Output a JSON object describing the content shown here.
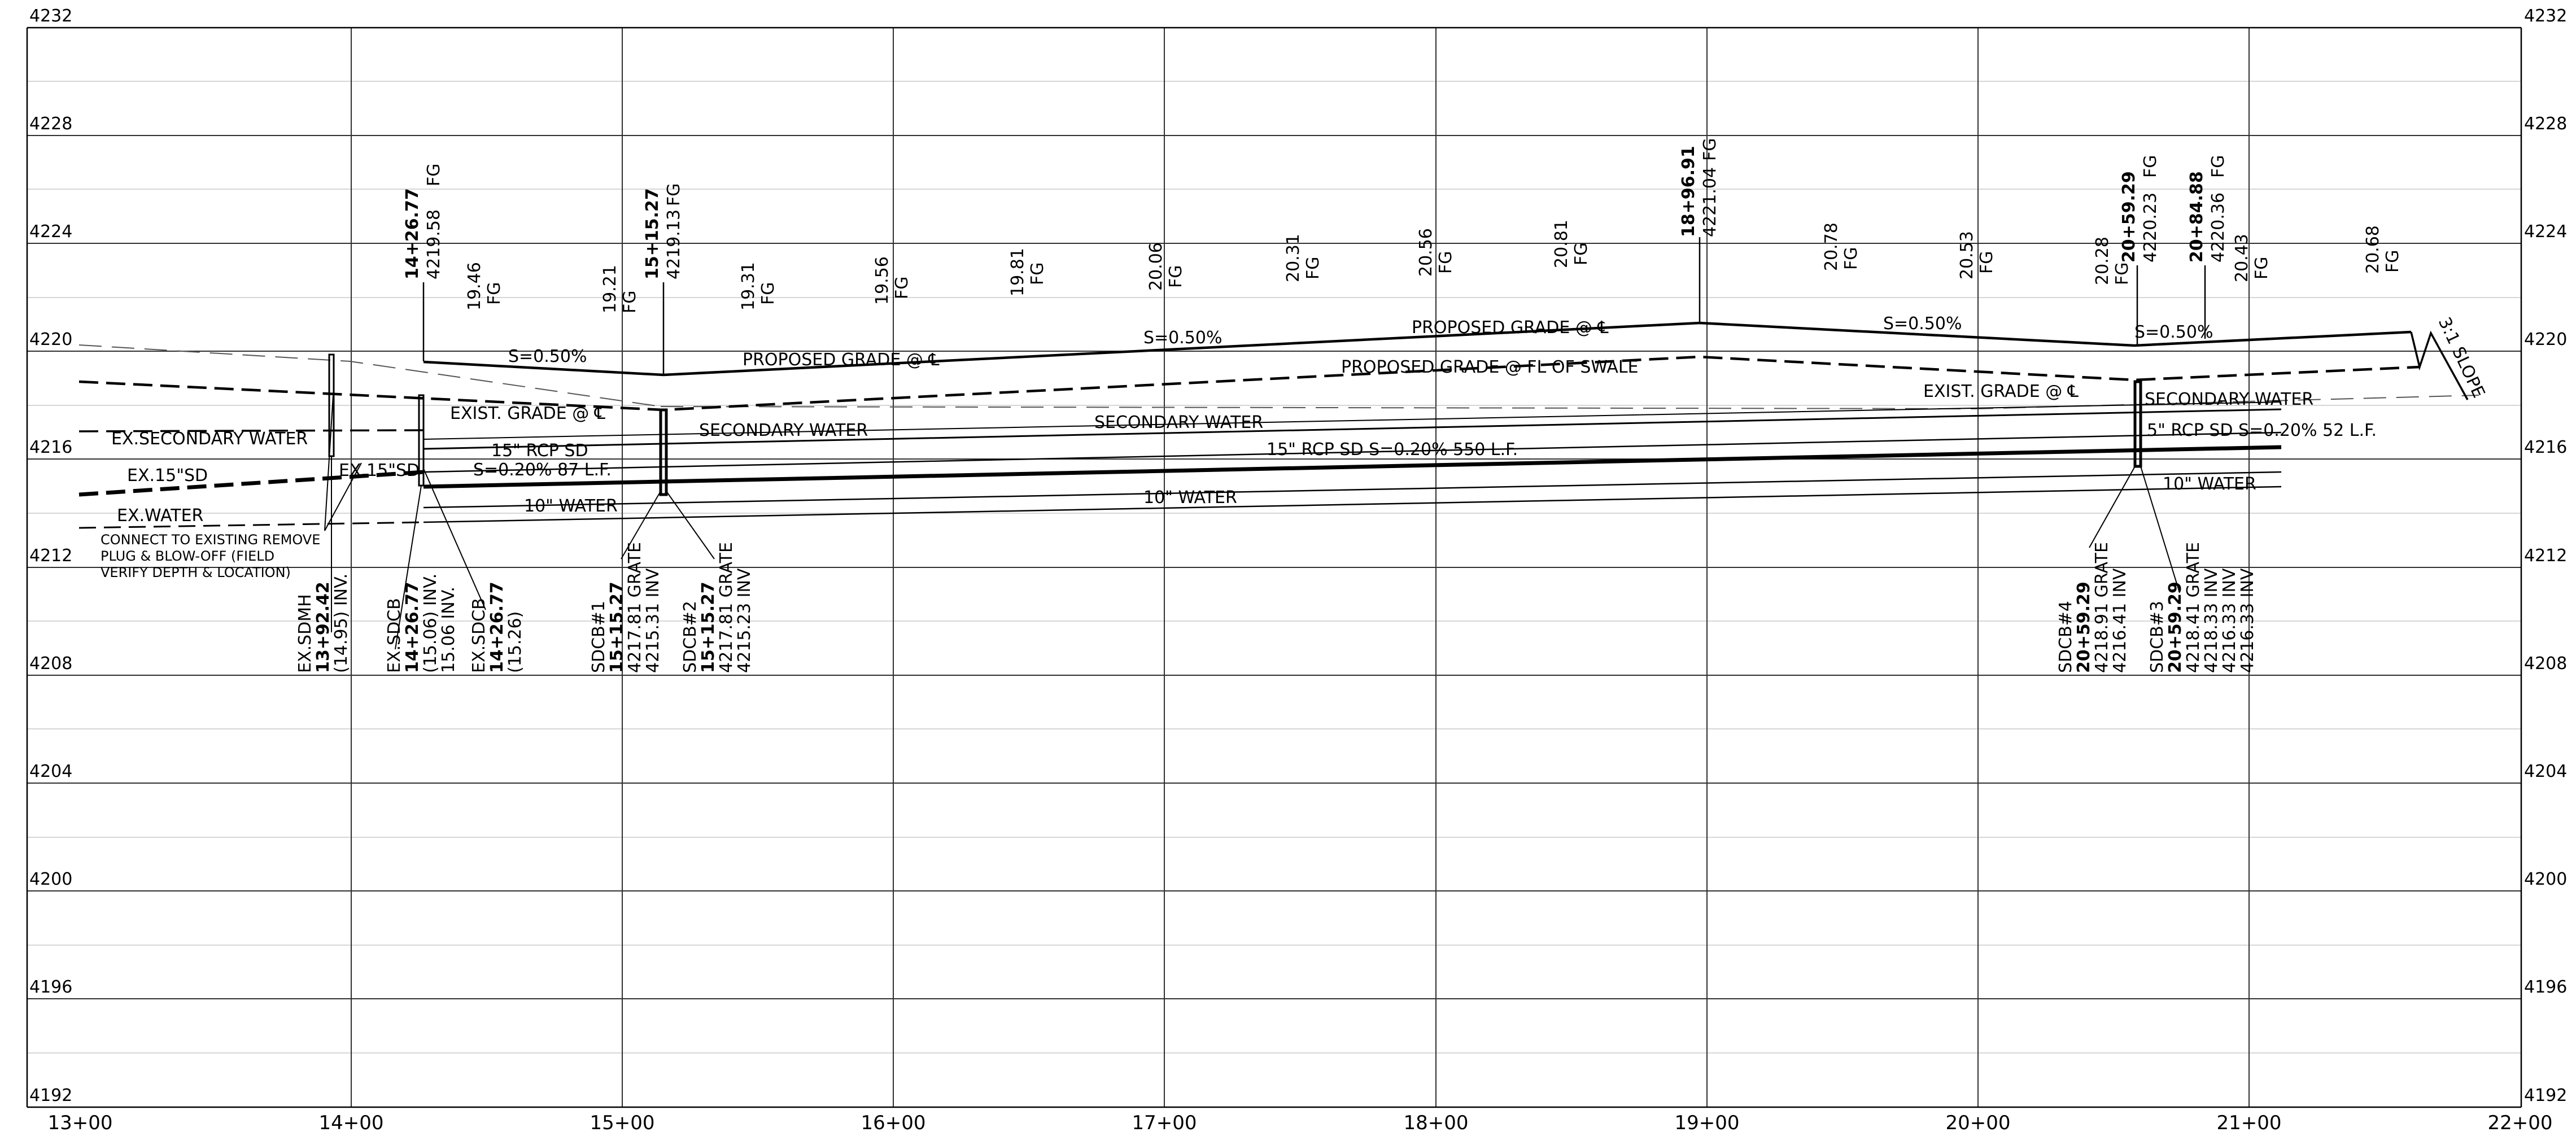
{
  "sheet": {
    "elev_min": 4192,
    "elev_max": 4232,
    "elev_labels": [
      "4232",
      "4228",
      "4224",
      "4220",
      "4216",
      "4212",
      "4208",
      "4204",
      "4200",
      "4196",
      "4192"
    ],
    "station_labels": [
      "13+00",
      "14+00",
      "15+00",
      "16+00",
      "17+00",
      "18+00",
      "19+00",
      "20+00",
      "21+00",
      "22+00"
    ]
  },
  "station_callouts": [
    {
      "id": "sta-1426",
      "station": "14+26.77",
      "elev": "4219.58",
      "suffix": "FG"
    },
    {
      "id": "sta-1515",
      "station": "15+15.27",
      "elev": "4219.13",
      "suffix": "FG"
    },
    {
      "id": "sta-1896",
      "station": "18+96.91",
      "elev": "4221.04",
      "suffix": "FG"
    },
    {
      "id": "sta-2059",
      "station": "20+59.29",
      "elev": "4220.23",
      "suffix": "FG"
    },
    {
      "id": "sta-2084",
      "station": "20+84.88",
      "elev": "4220.36",
      "suffix": "FG"
    }
  ],
  "grade_callouts": [
    {
      "id": "g1",
      "value": "19.46",
      "suffix": "FG"
    },
    {
      "id": "g2",
      "value": "19.21",
      "suffix": "FG"
    },
    {
      "id": "g3",
      "value": "19.31",
      "suffix": "FG"
    },
    {
      "id": "g4",
      "value": "19.56",
      "suffix": "FG"
    },
    {
      "id": "g5",
      "value": "19.81",
      "suffix": "FG"
    },
    {
      "id": "g6",
      "value": "20.06",
      "suffix": "FG"
    },
    {
      "id": "g7",
      "value": "20.31",
      "suffix": "FG"
    },
    {
      "id": "g8",
      "value": "20.56",
      "suffix": "FG"
    },
    {
      "id": "g9",
      "value": "20.81",
      "suffix": "FG"
    },
    {
      "id": "g10",
      "value": "20.78",
      "suffix": "FG"
    },
    {
      "id": "g11",
      "value": "20.53",
      "suffix": "FG"
    },
    {
      "id": "g12",
      "value": "20.28",
      "suffix": "FG"
    },
    {
      "id": "g13",
      "value": "20.43",
      "suffix": "FG"
    },
    {
      "id": "g14",
      "value": "20.68",
      "suffix": "FG"
    }
  ],
  "labels": {
    "slope_1": "S=0.50%",
    "slope_2": "S=0.50%",
    "slope_3": "S=0.50%",
    "slope_4": "S=0.50%",
    "proposed_grade_cl_1": "PROPOSED GRADE @ ℄",
    "proposed_grade_cl_2": "PROPOSED GRADE @ ℄",
    "proposed_grade_fl": "PROPOSED GRADE @ FL OF SWALE",
    "exist_grade_1": "EXIST. GRADE @ ℄",
    "exist_grade_2": "EXIST. GRADE @ ℄",
    "ex_secondary_water": "EX.SECONDARY WATER",
    "ex_15_sd_1": "EX.15\"SD",
    "ex_15_sd_2": "EX.15\"SD",
    "ex_water": "EX.WATER",
    "secondary_water_1": "SECONDARY WATER",
    "secondary_water_2": "SECONDARY WATER",
    "secondary_water_3": "SECONDARY WATER",
    "rcp_15_short": "15\" RCP SD",
    "rcp_15_short_slope": "S=0.20% 87 L.F.",
    "rcp_15_main": "15\" RCP SD S=0.20% 550 L.F.",
    "rcp_15_right": "5\" RCP SD S=0.20% 52 L.F.",
    "water_10_1": "10\" WATER",
    "water_10_2": "10\" WATER",
    "water_10_3": "10\" WATER",
    "slope_31": "3:1 SLOPE",
    "connect_note_1": "CONNECT TO EXISTING REMOVE",
    "connect_note_2": "PLUG & BLOW-OFF (FIELD",
    "connect_note_3": "VERIFY DEPTH & LOCATION)"
  },
  "structures": [
    {
      "id": "ex-sdmh",
      "lines": [
        "EX.SDMH",
        "13+92.42",
        "(14.95) INV."
      ]
    },
    {
      "id": "ex-sdcb-1",
      "lines": [
        "EX.SDCB",
        "14+26.77",
        "(15.06) INV.",
        "15.06 INV."
      ]
    },
    {
      "id": "ex-sdcb-2",
      "lines": [
        "EX.SDCB",
        "14+26.77",
        "(15.26)"
      ]
    },
    {
      "id": "sdcb-1",
      "lines": [
        "SDCB#1",
        "15+15.27",
        "4217.81 GRATE",
        "4215.31 INV"
      ]
    },
    {
      "id": "sdcb-2",
      "lines": [
        "SDCB#2",
        "15+15.27",
        "4217.81 GRATE",
        "4215.23 INV"
      ]
    },
    {
      "id": "sdcb-4",
      "lines": [
        "SDCB#4",
        "20+59.29",
        "4218.91 GRATE",
        "4216.41 INV"
      ]
    },
    {
      "id": "sdcb-3",
      "lines": [
        "SDCB#3",
        "20+59.29",
        "4218.41 GRATE",
        "4218.33 INV",
        "4216.33 INV",
        "4216.33 INV"
      ]
    }
  ]
}
